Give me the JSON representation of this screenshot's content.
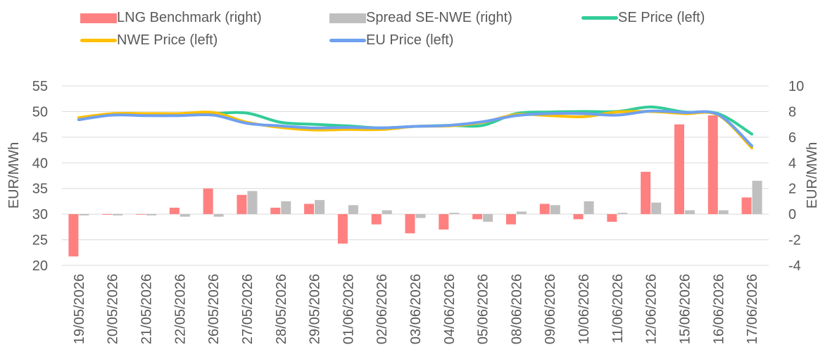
{
  "chart_data": {
    "type": "bar",
    "categories": [
      "19/05/2026",
      "20/05/2026",
      "21/05/2026",
      "22/05/2026",
      "26/05/2026",
      "27/05/2026",
      "28/05/2026",
      "29/05/2026",
      "01/06/2026",
      "02/06/2026",
      "03/06/2026",
      "04/06/2026",
      "05/06/2026",
      "08/06/2026",
      "09/06/2026",
      "10/06/2026",
      "11/06/2026",
      "12/06/2026",
      "15/06/2026",
      "16/06/2026",
      "17/06/2026"
    ],
    "title": "",
    "ylabel_left": "EUR/MWh",
    "ylabel_right": "EUR/MWh",
    "ylim_left": [
      20,
      55
    ],
    "yticks_left": [
      "20",
      "25",
      "30",
      "35",
      "40",
      "45",
      "50",
      "55"
    ],
    "ylim_right": [
      -4,
      10
    ],
    "yticks_right": [
      "-4",
      "-2",
      "0",
      "2",
      "4",
      "6",
      "8",
      "10"
    ],
    "grid": true,
    "legend_position": "top",
    "series": [
      {
        "name": "LNG Benchmark (right)",
        "kind": "bar",
        "axis": "right",
        "color": "#ff8080",
        "values": [
          -3.3,
          -0.05,
          0.0,
          0.5,
          2.0,
          1.5,
          0.5,
          0.8,
          -2.3,
          -0.8,
          -1.5,
          -1.2,
          -0.4,
          -0.8,
          0.8,
          -0.4,
          -0.6,
          3.3,
          7.0,
          7.7,
          1.3
        ]
      },
      {
        "name": "Spread SE-NWE (right)",
        "kind": "bar",
        "axis": "right",
        "color": "#bfbfbf",
        "values": [
          -0.1,
          -0.1,
          -0.1,
          -0.2,
          -0.2,
          1.8,
          1.0,
          1.1,
          0.7,
          0.3,
          -0.3,
          0.1,
          -0.6,
          0.2,
          0.7,
          1.0,
          0.1,
          0.9,
          0.3,
          0.3,
          2.6
        ]
      },
      {
        "name": "SE Price (left)",
        "kind": "line",
        "axis": "left",
        "color": "#33cc99",
        "values": [
          48.7,
          49.5,
          49.5,
          49.4,
          49.6,
          49.7,
          47.9,
          47.5,
          47.2,
          46.8,
          47.1,
          47.3,
          47.3,
          49.6,
          49.9,
          50.0,
          50.0,
          50.9,
          49.9,
          49.6,
          45.6
        ]
      },
      {
        "name": "NWE Price (left)",
        "kind": "line",
        "axis": "left",
        "color": "#ffc000",
        "values": [
          48.8,
          49.6,
          49.6,
          49.6,
          49.8,
          47.9,
          46.9,
          46.4,
          46.5,
          46.5,
          47.1,
          47.2,
          47.9,
          49.4,
          49.2,
          49.0,
          49.9,
          50.0,
          49.6,
          49.3,
          42.9
        ]
      },
      {
        "name": "EU Price (left)",
        "kind": "line",
        "axis": "left",
        "color": "#6fa0f0",
        "values": [
          48.4,
          49.3,
          49.2,
          49.2,
          49.3,
          47.7,
          47.2,
          46.8,
          46.9,
          46.8,
          47.1,
          47.3,
          48.0,
          49.2,
          49.6,
          49.6,
          49.3,
          50.1,
          49.8,
          49.4,
          43.3
        ]
      }
    ]
  }
}
